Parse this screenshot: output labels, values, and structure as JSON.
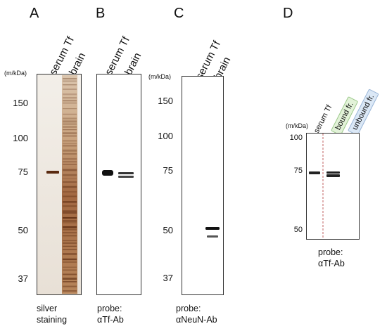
{
  "figure": {
    "panels": [
      {
        "letter": "A",
        "unit": "(m/kDa)",
        "lanes": [
          "serum Tf",
          "brain"
        ],
        "markers": [
          "150",
          "100",
          "75",
          "50",
          "37"
        ],
        "caption": [
          "silver",
          "staining"
        ]
      },
      {
        "letter": "B",
        "lanes": [
          "serum Tf",
          "brain"
        ],
        "caption": [
          "probe:",
          "αTf-Ab"
        ]
      },
      {
        "letter": "C",
        "unit": "(m/kDa)",
        "lanes": [
          "serum Tf",
          "brain"
        ],
        "markers": [
          "150",
          "100",
          "75",
          "50",
          "37"
        ],
        "caption": [
          "probe:",
          "αNeuN-Ab"
        ]
      },
      {
        "letter": "D",
        "unit": "(m/kDa)",
        "lanes": [
          "serum Tf",
          "bound fr.",
          "unbound fr."
        ],
        "markers": [
          "100",
          "75",
          "50"
        ],
        "caption": [
          "probe:",
          "αTf-Ab"
        ]
      }
    ],
    "colors": {
      "silver_band": "#5a2a10",
      "silver_background": "#f0ebe4",
      "bound_box": "#e2f2d8",
      "unbound_box": "#dbe8f6",
      "blot_band": "#111111"
    }
  }
}
